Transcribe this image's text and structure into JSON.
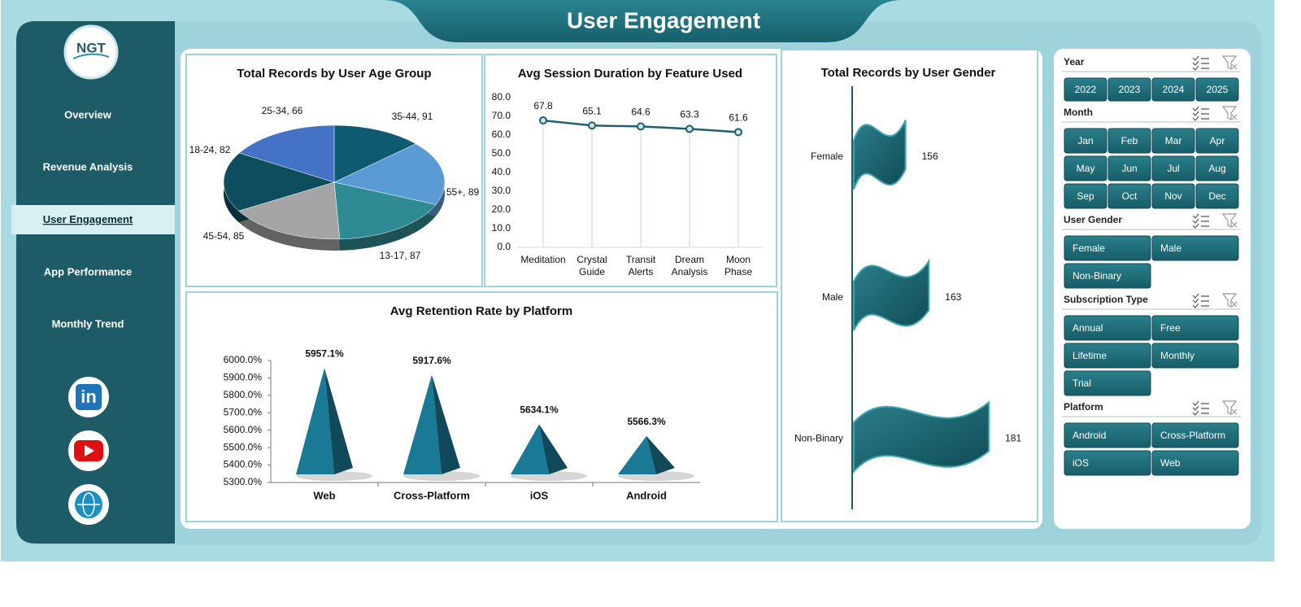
{
  "header": {
    "title": "User Engagement"
  },
  "logo": {
    "text": "NGT"
  },
  "nav": {
    "items": [
      "Overview",
      "Revenue Analysis",
      "User Engagement",
      "App Performance",
      "Monthly Trend"
    ],
    "active": 2
  },
  "social": {
    "linkedin": "in"
  },
  "chart_data": [
    {
      "type": "pie",
      "title": "Total Records by User Age Group",
      "categories": [
        "25-34",
        "35-44",
        "55+",
        "13-17",
        "45-54",
        "18-24"
      ],
      "values": [
        66,
        91,
        89,
        87,
        85,
        82
      ],
      "value_labels": [
        "25-34, 66",
        "35-44, 91",
        "55+, 89",
        "13-17, 87",
        "45-54, 85",
        "18-24, 82"
      ],
      "colors": [
        "#0e5a70",
        "#5b9bd5",
        "#2e8b94",
        "#a5a5a5",
        "#0d4d5e",
        "#4472c4"
      ]
    },
    {
      "type": "line",
      "title": "Avg Session Duration by Feature Used",
      "categories": [
        "Meditation",
        "Crystal Guide",
        "Transit Alerts",
        "Dream Analysis",
        "Moon Phase"
      ],
      "values": [
        67.8,
        65.1,
        64.6,
        63.3,
        61.6
      ],
      "color": "#1f5f6e",
      "ylim": [
        0,
        80
      ],
      "yticks": [
        {
          "value": 0,
          "label": "0.0"
        },
        {
          "value": 10,
          "label": "10.0"
        },
        {
          "value": 20,
          "label": "20.0"
        },
        {
          "value": 30,
          "label": "30.0"
        },
        {
          "value": 40,
          "label": "40.0"
        },
        {
          "value": 50,
          "label": "50.0"
        },
        {
          "value": 60,
          "label": "60.0"
        },
        {
          "value": 70,
          "label": "70.0"
        },
        {
          "value": 80,
          "label": "80.0"
        }
      ]
    },
    {
      "type": "bar",
      "bar_shape": "pyramid",
      "title": "Avg Retention Rate by Platform",
      "categories": [
        "Web",
        "Cross-Platform",
        "iOS",
        "Android"
      ],
      "values": [
        5957.1,
        5917.6,
        5634.1,
        5566.3
      ],
      "value_labels": [
        "5957.1%",
        "5917.6%",
        "5634.1%",
        "5566.3%"
      ],
      "color": "#1a7a96",
      "ylim": [
        5300,
        6000
      ],
      "yticks": [
        {
          "value": 5300,
          "label": "5300.0%"
        },
        {
          "value": 5400,
          "label": "5400.0%"
        },
        {
          "value": 5500,
          "label": "5500.0%"
        },
        {
          "value": 5600,
          "label": "5600.0%"
        },
        {
          "value": 5700,
          "label": "5700.0%"
        },
        {
          "value": 5800,
          "label": "5800.0%"
        },
        {
          "value": 5900,
          "label": "5900.0%"
        },
        {
          "value": 6000,
          "label": "6000.0%"
        }
      ]
    },
    {
      "type": "bar",
      "orientation": "horizontal",
      "bar_shape": "flag",
      "title": "Total Records by User Gender",
      "categories": [
        "Female",
        "Male",
        "Non-Binary"
      ],
      "values": [
        156,
        163,
        181
      ],
      "color": "#1d6470",
      "xlim": [
        140,
        190
      ]
    }
  ],
  "slicers": [
    {
      "title": "Year",
      "options": [
        "2022",
        "2023",
        "2024",
        "2025"
      ]
    },
    {
      "title": "Month",
      "options": [
        "Jan",
        "Feb",
        "Mar",
        "Apr",
        "May",
        "Jun",
        "Jul",
        "Aug",
        "Sep",
        "Oct",
        "Nov",
        "Dec"
      ]
    },
    {
      "title": "User Gender",
      "options": [
        "Female",
        "Male",
        "Non-Binary"
      ]
    },
    {
      "title": "Subscription Type",
      "options": [
        "Annual",
        "Free",
        "Lifetime",
        "Monthly",
        "Trial"
      ]
    },
    {
      "title": "Platform",
      "options": [
        "Android",
        "Cross-Platform",
        "iOS",
        "Web"
      ]
    }
  ]
}
